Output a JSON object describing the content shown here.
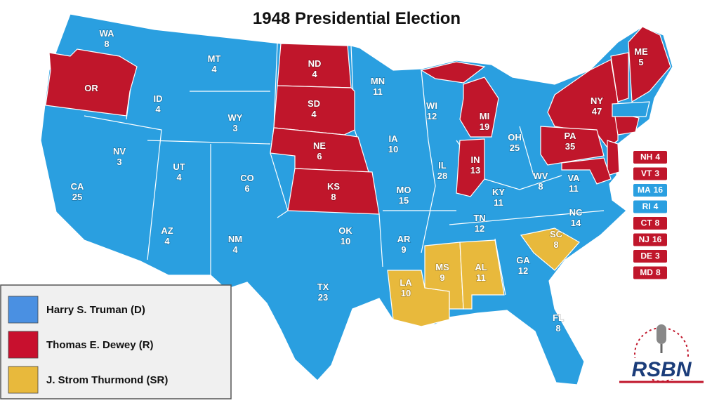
{
  "title": "1948 Presidential Election",
  "legend": [
    {
      "label": "Harry S. Truman (D)",
      "color": "#4a90e2"
    },
    {
      "label": "Thomas E. Dewey (R)",
      "color": "#c8102e"
    },
    {
      "label": "J. Strom Thurmond  (SR)",
      "color": "#e8b93c"
    }
  ],
  "map_colors": {
    "truman": "#2a9fe0",
    "dewey": "#c0162b",
    "thurmond": "#e8b93c"
  },
  "states": [
    {
      "abbr": "WA",
      "votes": "8"
    },
    {
      "abbr": "OR"
    },
    {
      "abbr": "MT",
      "votes": "4"
    },
    {
      "abbr": "ID",
      "votes": "4"
    },
    {
      "abbr": "WY",
      "votes": "3"
    },
    {
      "abbr": "NV",
      "votes": "3"
    },
    {
      "abbr": "UT",
      "votes": "4"
    },
    {
      "abbr": "CO",
      "votes": "6"
    },
    {
      "abbr": "CA",
      "votes": "25"
    },
    {
      "abbr": "AZ",
      "votes": "4"
    },
    {
      "abbr": "NM",
      "votes": "4"
    },
    {
      "abbr": "ND",
      "votes": "4"
    },
    {
      "abbr": "SD",
      "votes": "4"
    },
    {
      "abbr": "NE",
      "votes": "6"
    },
    {
      "abbr": "KS",
      "votes": "8"
    },
    {
      "abbr": "MN",
      "votes": "11"
    },
    {
      "abbr": "IA",
      "votes": "10"
    },
    {
      "abbr": "MO",
      "votes": "15"
    },
    {
      "abbr": "AR",
      "votes": "9"
    },
    {
      "abbr": "OK",
      "votes": "10"
    },
    {
      "abbr": "TX",
      "votes": "23"
    },
    {
      "abbr": "LA",
      "votes": "10"
    },
    {
      "abbr": "MS",
      "votes": "9"
    },
    {
      "abbr": "AL",
      "votes": "11"
    },
    {
      "abbr": "WI",
      "votes": "12"
    },
    {
      "abbr": "IL",
      "votes": "28"
    },
    {
      "abbr": "MI",
      "votes": "19"
    },
    {
      "abbr": "IN",
      "votes": "13"
    },
    {
      "abbr": "OH",
      "votes": "25"
    },
    {
      "abbr": "KY",
      "votes": "11"
    },
    {
      "abbr": "TN",
      "votes": "12"
    },
    {
      "abbr": "GA",
      "votes": "12"
    },
    {
      "abbr": "FL",
      "votes": "8"
    },
    {
      "abbr": "SC",
      "votes": "8"
    },
    {
      "abbr": "NC",
      "votes": "14"
    },
    {
      "abbr": "VA",
      "votes": "11"
    },
    {
      "abbr": "WV",
      "votes": "8"
    },
    {
      "abbr": "PA",
      "votes": "35"
    },
    {
      "abbr": "NY",
      "votes": "47"
    },
    {
      "abbr": "ME",
      "votes": "5"
    }
  ],
  "small_states": [
    {
      "abbr": "NH",
      "votes": "4",
      "color": "#c0162b"
    },
    {
      "abbr": "VT",
      "votes": "3",
      "color": "#c0162b"
    },
    {
      "abbr": "MA",
      "votes": "16",
      "color": "#2a9fe0"
    },
    {
      "abbr": "RI",
      "votes": "4",
      "color": "#2a9fe0"
    },
    {
      "abbr": "CT",
      "votes": "8",
      "color": "#c0162b"
    },
    {
      "abbr": "NJ",
      "votes": "16",
      "color": "#c0162b"
    },
    {
      "abbr": "DE",
      "votes": "3",
      "color": "#c0162b"
    },
    {
      "abbr": "MD",
      "votes": "8",
      "color": "#c0162b"
    }
  ],
  "logo": "RSBN"
}
